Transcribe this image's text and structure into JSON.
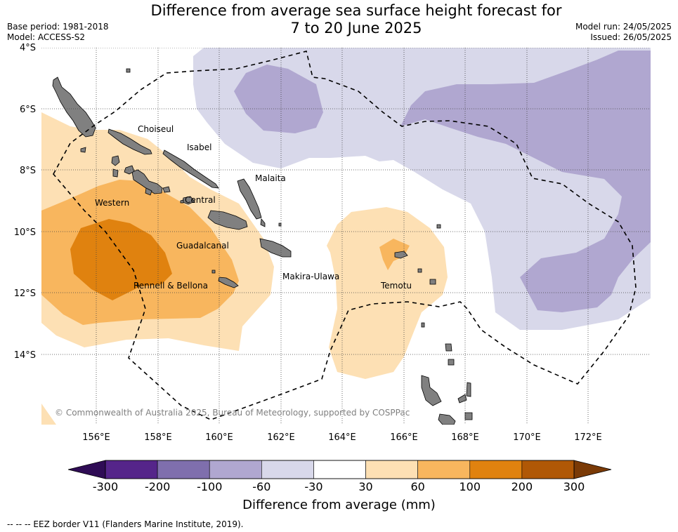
{
  "header": {
    "title_line1": "Difference from average sea surface height forecast for",
    "title_line2": "7 to 20 June 2025",
    "base_period": "Base period: 1981-2018",
    "model": "Model: ACCESS-S2",
    "model_run": "Model run: 24/05/2025",
    "issued": "Issued: 26/05/2025"
  },
  "map": {
    "lat_labels": [
      "4°S",
      "6°S",
      "8°S",
      "10°S",
      "12°S",
      "14°S"
    ],
    "lon_labels": [
      "156°E",
      "158°E",
      "160°E",
      "162°E",
      "164°E",
      "166°E",
      "168°E",
      "170°E",
      "172°E"
    ],
    "regions": [
      "Choiseul",
      "Isabel",
      "Malaita",
      "Western",
      "Central",
      "Guadalcanal",
      "Makira-Ulawa",
      "Rennell & Bellona",
      "Temotu"
    ],
    "copyright": "© Commonwealth of Australia 2025, Bureau of Meteorology, supported by COSPPac"
  },
  "colorbar": {
    "title": "Difference from average (mm)",
    "ticks": [
      "-300",
      "-200",
      "-100",
      "-60",
      "-30",
      "30",
      "60",
      "100",
      "200",
      "300"
    ],
    "colors": [
      "#55258a",
      "#7f6fad",
      "#b0a7d0",
      "#d8d8ea",
      "#ffffff",
      "#fde0b4",
      "#f8b65e",
      "#e0820f",
      "#b05806"
    ],
    "under_color": "#2f0c55",
    "over_color": "#7a3a06"
  },
  "footer": {
    "eez_note": "--  --  -- EEZ border V11 (Flanders Marine Institute, 2019)."
  }
}
